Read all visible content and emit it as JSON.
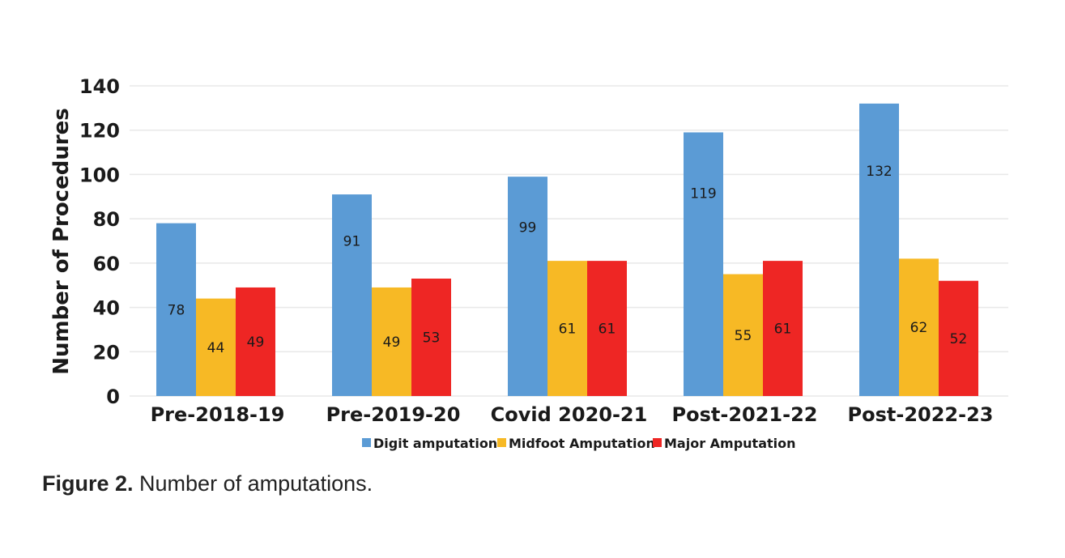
{
  "chart_data": {
    "type": "bar",
    "categories": [
      "Pre-2018-19",
      "Pre-2019-20",
      "Covid 2020-21",
      "Post-2021-22",
      "Post-2022-23"
    ],
    "series": [
      {
        "name": "Digit amputation",
        "values": [
          78,
          91,
          99,
          119,
          132
        ],
        "color": "#5b9bd5"
      },
      {
        "name": "Midfoot Amputation",
        "values": [
          44,
          49,
          61,
          55,
          62
        ],
        "color": "#f7b925"
      },
      {
        "name": "Major Amputation",
        "values": [
          49,
          53,
          61,
          61,
          52
        ],
        "color": "#ee2624"
      }
    ],
    "data_labels": [
      [
        "78",
        "44",
        "49"
      ],
      [
        "91",
        "49",
        "53"
      ],
      [
        "99",
        "61",
        "61"
      ],
      [
        "119",
        "55",
        "61"
      ],
      [
        "132",
        "62",
        "52"
      ]
    ],
    "ylabel": "Number of Procedures",
    "xlabel": "",
    "ylim": [
      0,
      140
    ],
    "yticks": [
      0,
      20,
      40,
      60,
      80,
      100,
      120,
      140
    ],
    "grid": true,
    "legend_position": "bottom"
  },
  "caption": {
    "label": "Figure 2.",
    "text": " Number of amputations."
  }
}
